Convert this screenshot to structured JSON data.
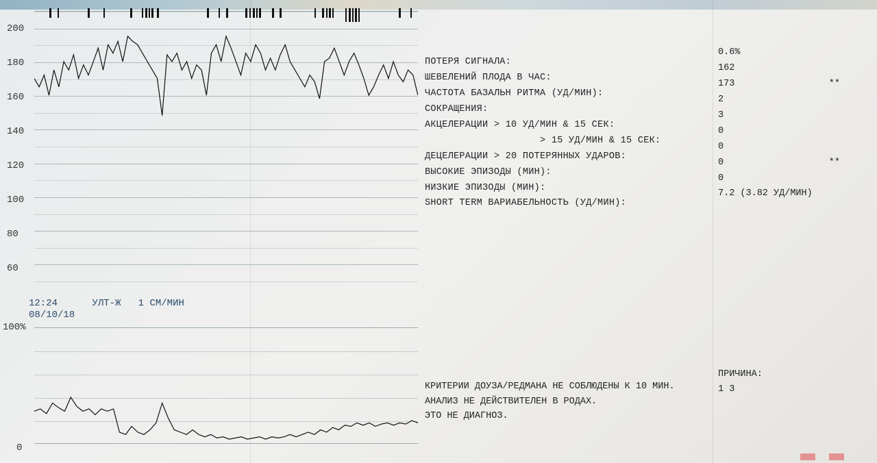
{
  "fhr_chart": {
    "type": "line",
    "ylim": [
      50,
      210
    ],
    "ytick_step": 20,
    "yticks": [
      60,
      80,
      100,
      120,
      140,
      160,
      180,
      200
    ],
    "minor_step": 10,
    "background_color": "#e9ecee",
    "grid_color": "#99aaaa",
    "line_color": "#111111",
    "line_width": 1.2,
    "trace": [
      170,
      165,
      172,
      160,
      175,
      165,
      180,
      175,
      184,
      170,
      178,
      172,
      180,
      188,
      175,
      190,
      185,
      192,
      180,
      195,
      192,
      190,
      185,
      180,
      175,
      170,
      148,
      184,
      180,
      185,
      175,
      180,
      170,
      178,
      175,
      160,
      185,
      190,
      180,
      195,
      188,
      180,
      172,
      185,
      180,
      190,
      185,
      175,
      182,
      175,
      184,
      190,
      180,
      175,
      170,
      165,
      172,
      168,
      158,
      180,
      182,
      188,
      180,
      172,
      180,
      185,
      178,
      170,
      160,
      165,
      172,
      178,
      170,
      180,
      172,
      168,
      175,
      172,
      160
    ],
    "tick_positions_pct": [
      4,
      6,
      14,
      18,
      25,
      28,
      29,
      29.8,
      30.6,
      32,
      45,
      48,
      50,
      55,
      56,
      57,
      57.8,
      58.6,
      62,
      64,
      73,
      75,
      76,
      76.8,
      77.6,
      81,
      82,
      82.8,
      83.6,
      84.4,
      95,
      98
    ],
    "tick_heights": [
      14,
      14,
      14,
      14,
      14,
      14,
      14,
      14,
      14,
      14,
      14,
      14,
      14,
      14,
      14,
      14,
      14,
      14,
      14,
      14,
      14,
      14,
      14,
      14,
      14,
      20,
      20,
      20,
      20,
      20,
      14,
      14
    ]
  },
  "mid": {
    "time": "12:24",
    "mode": "УЛТ-Ж",
    "speed": "1 СМ/МИН",
    "date": "08/10/18"
  },
  "pct100": "100%",
  "pct0": "0",
  "toco_chart": {
    "type": "line",
    "ylim": [
      0,
      100
    ],
    "background_color": "#e9ecee",
    "grid_color": "#99aaaa",
    "line_color": "#111111",
    "line_width": 1.2,
    "trace": [
      28,
      30,
      26,
      35,
      31,
      28,
      40,
      32,
      28,
      30,
      25,
      30,
      28,
      30,
      10,
      8,
      15,
      10,
      8,
      12,
      18,
      35,
      22,
      12,
      10,
      8,
      12,
      8,
      6,
      8,
      5,
      6,
      4,
      5,
      6,
      4,
      5,
      6,
      4,
      6,
      5,
      6,
      8,
      6,
      8,
      10,
      8,
      12,
      10,
      14,
      12,
      16,
      15,
      18,
      16,
      18,
      15,
      17,
      18,
      16,
      18,
      17,
      20,
      18
    ]
  },
  "report": {
    "rows": [
      {
        "label": "ПОТЕРЯ СИГНАЛА:",
        "value": "0.6%",
        "flag": ""
      },
      {
        "label": "ШЕВЕЛЕНИЙ ПЛОДА В ЧАС:",
        "value": "162",
        "flag": ""
      },
      {
        "label": "ЧАСТОТА БАЗАЛЬН РИТМА (УД/МИН):",
        "value": "173",
        "flag": "**"
      },
      {
        "label": "СОКРАЩЕНИЯ:",
        "value": "2",
        "flag": ""
      },
      {
        "label": "АКЦЕЛЕРАЦИИ > 10 УД/МИН & 15 СЕК:",
        "value": "3",
        "flag": ""
      },
      {
        "label": "                    > 15 УД/МИН & 15 СЕК:",
        "value": "0",
        "flag": ""
      },
      {
        "label": "ДЕЦЕЛЕРАЦИИ > 20 ПОТЕРЯННЫХ УДАРОВ:",
        "value": "0",
        "flag": ""
      },
      {
        "label": "ВЫСОКИЕ ЭПИЗОДЫ (МИН):",
        "value": "0",
        "flag": "**"
      },
      {
        "label": "НИЗКИЕ ЭПИЗОДЫ (МИН):",
        "value": "0",
        "flag": ""
      },
      {
        "label": "SHORT TERM ВАРИАБЕЛЬНОСТЬ (УД/МИН):",
        "value": "7.2  (3.82 УД/МИН)",
        "flag": ""
      }
    ]
  },
  "criteria": {
    "line1": "КРИТЕРИИ ДОУЗА/РЕДМАНА НЕ СОБЛЮДЕНЫ К 10 МИН.",
    "line2": "АНАЛИЗ НЕ ДЕЙСТВИТЕЛЕН В РОДАХ.",
    "line3": "ЭТО НЕ ДИАГНОЗ."
  },
  "reason": {
    "title": "ПРИЧИНА:",
    "codes": "1 3"
  }
}
